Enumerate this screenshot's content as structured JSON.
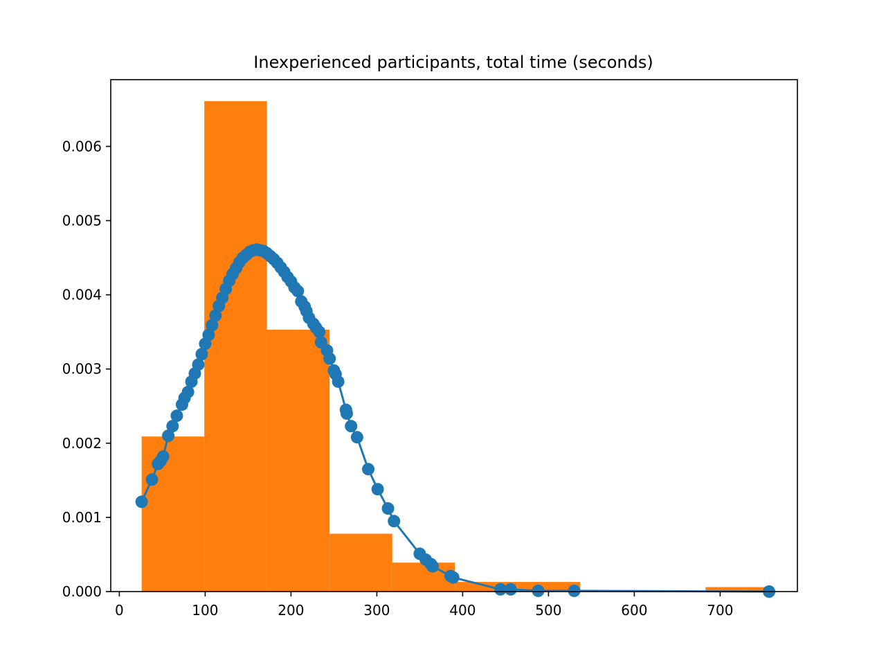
{
  "chart_data": {
    "type": "histogram_with_line",
    "title": "Inexperienced participants, total time (seconds)",
    "xlabel": "",
    "ylabel": "",
    "xlim": [
      -10,
      790
    ],
    "ylim": [
      0,
      0.0069
    ],
    "x_ticks": [
      0,
      100,
      200,
      300,
      400,
      500,
      600,
      700
    ],
    "x_tick_labels": [
      "0",
      "100",
      "200",
      "300",
      "400",
      "500",
      "600",
      "700"
    ],
    "y_ticks": [
      0,
      0.001,
      0.002,
      0.003,
      0.004,
      0.005,
      0.006
    ],
    "y_tick_labels": [
      "0.000",
      "0.001",
      "0.002",
      "0.003",
      "0.004",
      "0.005",
      "0.006"
    ],
    "grid": false,
    "colors": {
      "histogram": "#ff7f0e",
      "density": "#1f77b4"
    },
    "histogram": {
      "bin_edges": [
        26,
        99,
        172,
        245,
        318,
        391,
        464,
        537,
        610,
        683,
        756
      ],
      "densities": [
        0.00209,
        0.00661,
        0.00353,
        0.00078,
        0.00039,
        0.00013,
        0.00013,
        0,
        0,
        6e-05
      ]
    },
    "density_series": {
      "x": [
        26,
        38,
        45,
        48,
        51,
        57,
        62,
        67,
        73,
        76,
        80,
        84,
        88,
        92,
        96,
        100,
        104,
        108,
        112,
        116,
        120,
        124,
        128,
        132,
        136,
        140,
        144,
        148,
        152,
        156,
        160,
        164,
        168,
        172,
        176,
        180,
        184,
        188,
        192,
        196,
        200,
        204,
        208,
        212,
        216,
        218,
        221,
        226,
        229,
        233,
        235,
        242,
        245,
        250,
        252,
        255,
        264,
        265,
        270,
        277,
        290,
        301,
        313,
        320,
        350,
        357,
        363,
        365,
        386,
        389,
        444,
        456,
        488,
        530,
        757
      ],
      "y": [
        0.00121,
        0.00151,
        0.00172,
        0.00176,
        0.00182,
        0.0021,
        0.00223,
        0.00237,
        0.00252,
        0.00261,
        0.00269,
        0.00283,
        0.00294,
        0.00306,
        0.0032,
        0.00334,
        0.00346,
        0.00359,
        0.00372,
        0.00385,
        0.00396,
        0.00408,
        0.00419,
        0.00428,
        0.00436,
        0.00444,
        0.0045,
        0.00454,
        0.00458,
        0.0046,
        0.00461,
        0.0046,
        0.00459,
        0.00456,
        0.00452,
        0.00448,
        0.00443,
        0.00437,
        0.00431,
        0.00424,
        0.00418,
        0.0041,
        0.00405,
        0.00391,
        0.00384,
        0.00378,
        0.00369,
        0.00361,
        0.00356,
        0.0035,
        0.00336,
        0.00325,
        0.00314,
        0.00298,
        0.00293,
        0.00283,
        0.00245,
        0.0024,
        0.00223,
        0.00208,
        0.00165,
        0.00138,
        0.00112,
        0.00095,
        0.00051,
        0.00043,
        0.00037,
        0.00034,
        0.00021,
        0.00019,
        3e-05,
        3e-05,
        1e-05,
        1e-05,
        0.0
      ]
    }
  }
}
